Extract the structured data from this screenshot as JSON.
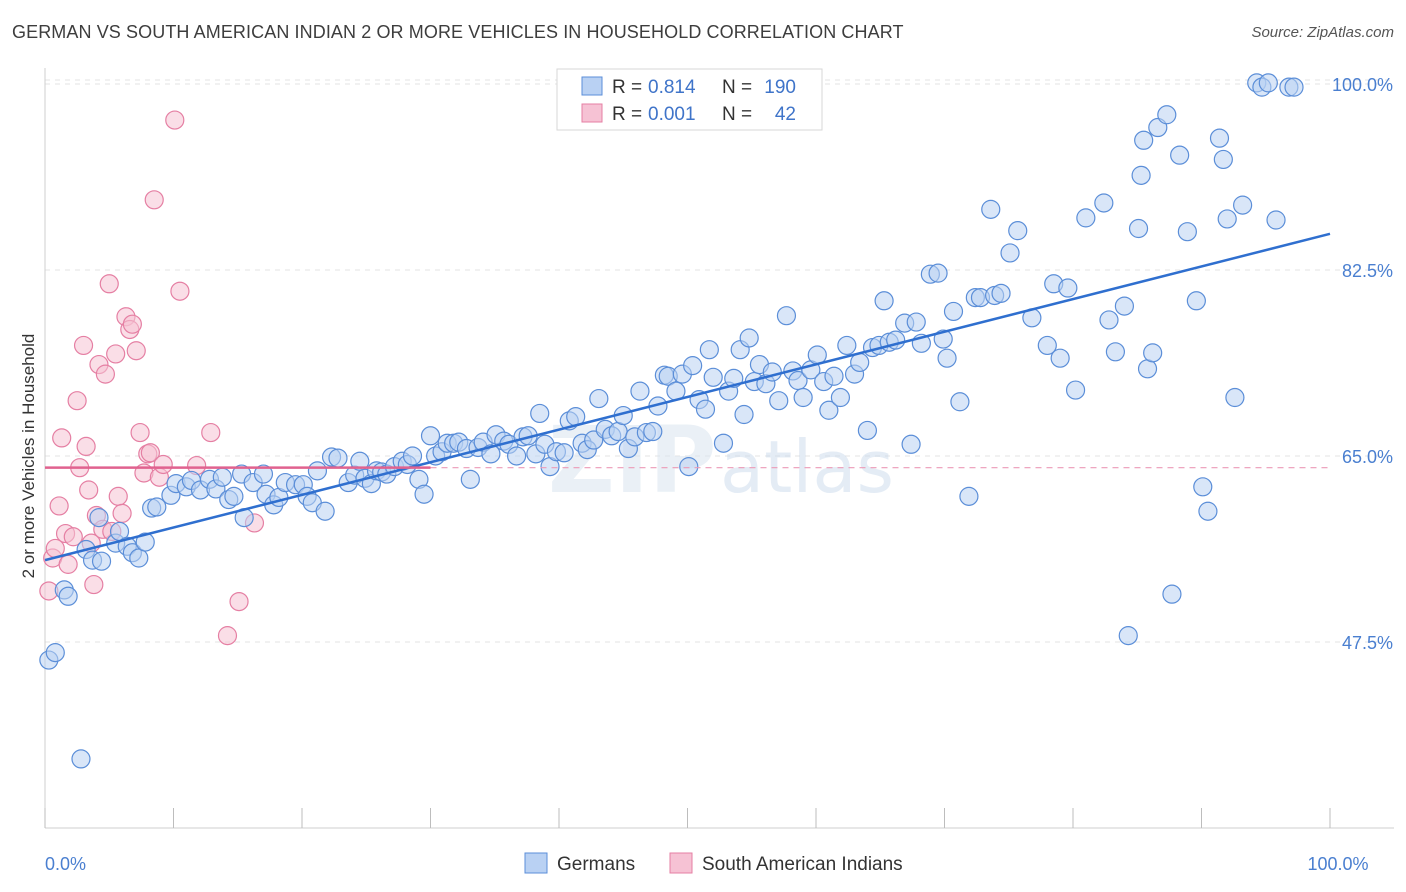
{
  "title": "GERMAN VS SOUTH AMERICAN INDIAN 2 OR MORE VEHICLES IN HOUSEHOLD CORRELATION CHART",
  "source": "Source: ZipAtlas.com",
  "watermark": {
    "zip": "ZIP",
    "atlas": "atlas"
  },
  "chart_data": {
    "type": "scatter",
    "ylabel": "2 or more Vehicles in Household",
    "xlim": [
      0,
      100
    ],
    "ylim": [
      30,
      101.5
    ],
    "x_tick_labels": [
      {
        "value": 0,
        "label": "0.0%"
      },
      {
        "value": 100,
        "label": "100.0%"
      }
    ],
    "y_tick_labels": [
      {
        "value": 47.5,
        "label": "47.5%"
      },
      {
        "value": 65.0,
        "label": "65.0%"
      },
      {
        "value": 82.5,
        "label": "82.5%"
      },
      {
        "value": 100.0,
        "label": "100.0%"
      }
    ],
    "grid": true,
    "legend_position": "top-center",
    "stats_box": [
      {
        "r_label": "R =",
        "r_value": "0.814",
        "n_label": "N =",
        "n_value": "190"
      },
      {
        "r_label": "R =",
        "r_value": "0.001",
        "n_label": "N =",
        "n_value": "42"
      }
    ],
    "series": [
      {
        "name": "Germans",
        "color": "#5b8ed8",
        "fill": "#b9d1f3",
        "trend": {
          "x": [
            0,
            100
          ],
          "y": [
            55.2,
            85.9
          ]
        },
        "points": [
          [
            0.3,
            45.8
          ],
          [
            0.8,
            46.5
          ],
          [
            1.5,
            52.4
          ],
          [
            1.8,
            51.8
          ],
          [
            2.8,
            36.5
          ],
          [
            3.2,
            56.2
          ],
          [
            3.7,
            55.2
          ],
          [
            4.2,
            59.2
          ],
          [
            4.4,
            55.1
          ],
          [
            5.5,
            56.8
          ],
          [
            5.8,
            57.9
          ],
          [
            6.4,
            56.5
          ],
          [
            6.8,
            55.9
          ],
          [
            7.3,
            55.4
          ],
          [
            7.8,
            56.9
          ],
          [
            8.3,
            60.1
          ],
          [
            8.7,
            60.2
          ],
          [
            9.8,
            61.3
          ],
          [
            10.2,
            62.4
          ],
          [
            11.0,
            62.1
          ],
          [
            11.4,
            62.7
          ],
          [
            12.1,
            61.8
          ],
          [
            12.8,
            62.8
          ],
          [
            13.3,
            61.9
          ],
          [
            13.8,
            63.0
          ],
          [
            14.3,
            60.9
          ],
          [
            14.7,
            61.2
          ],
          [
            15.3,
            63.3
          ],
          [
            15.5,
            59.2
          ],
          [
            16.2,
            62.5
          ],
          [
            17.0,
            63.3
          ],
          [
            17.2,
            61.4
          ],
          [
            17.8,
            60.4
          ],
          [
            18.2,
            61.1
          ],
          [
            18.7,
            62.5
          ],
          [
            19.5,
            62.3
          ],
          [
            20.1,
            62.3
          ],
          [
            20.4,
            61.2
          ],
          [
            20.8,
            60.6
          ],
          [
            21.2,
            63.6
          ],
          [
            21.8,
            59.8
          ],
          [
            22.3,
            64.9
          ],
          [
            22.8,
            64.8
          ],
          [
            23.6,
            62.5
          ],
          [
            24.1,
            63.2
          ],
          [
            24.5,
            64.5
          ],
          [
            24.9,
            62.9
          ],
          [
            25.4,
            62.4
          ],
          [
            25.8,
            63.6
          ],
          [
            26.2,
            63.5
          ],
          [
            26.6,
            63.3
          ],
          [
            27.2,
            64.0
          ],
          [
            27.8,
            64.5
          ],
          [
            28.2,
            64.2
          ],
          [
            28.6,
            65.0
          ],
          [
            29.1,
            62.8
          ],
          [
            29.5,
            61.4
          ],
          [
            30.0,
            66.9
          ],
          [
            30.4,
            65.0
          ],
          [
            30.9,
            65.4
          ],
          [
            31.3,
            66.2
          ],
          [
            31.8,
            66.2
          ],
          [
            32.2,
            66.3
          ],
          [
            32.8,
            65.7
          ],
          [
            33.1,
            62.8
          ],
          [
            33.7,
            65.8
          ],
          [
            34.1,
            66.3
          ],
          [
            34.7,
            65.2
          ],
          [
            35.1,
            67.0
          ],
          [
            35.7,
            66.4
          ],
          [
            36.1,
            66.1
          ],
          [
            36.7,
            65.0
          ],
          [
            37.2,
            66.8
          ],
          [
            37.6,
            66.9
          ],
          [
            38.2,
            65.2
          ],
          [
            38.5,
            69.0
          ],
          [
            38.9,
            66.1
          ],
          [
            39.3,
            64.0
          ],
          [
            39.8,
            65.4
          ],
          [
            40.4,
            65.3
          ],
          [
            40.8,
            68.3
          ],
          [
            41.3,
            68.7
          ],
          [
            41.8,
            66.2
          ],
          [
            42.2,
            65.6
          ],
          [
            42.7,
            66.5
          ],
          [
            43.1,
            70.4
          ],
          [
            43.6,
            67.5
          ],
          [
            44.1,
            66.9
          ],
          [
            44.6,
            67.3
          ],
          [
            45.0,
            68.8
          ],
          [
            45.4,
            65.7
          ],
          [
            45.9,
            66.8
          ],
          [
            46.3,
            71.1
          ],
          [
            46.8,
            67.2
          ],
          [
            47.3,
            67.3
          ],
          [
            47.7,
            69.7
          ],
          [
            48.2,
            72.6
          ],
          [
            48.5,
            72.5
          ],
          [
            49.1,
            71.1
          ],
          [
            49.6,
            72.7
          ],
          [
            50.1,
            64.0
          ],
          [
            50.4,
            73.5
          ],
          [
            50.9,
            70.3
          ],
          [
            51.4,
            69.4
          ],
          [
            51.7,
            75.0
          ],
          [
            52.0,
            72.4
          ],
          [
            52.8,
            66.2
          ],
          [
            53.2,
            71.1
          ],
          [
            53.6,
            72.3
          ],
          [
            54.1,
            75.0
          ],
          [
            54.4,
            68.9
          ],
          [
            54.8,
            76.1
          ],
          [
            55.2,
            72.0
          ],
          [
            55.6,
            73.6
          ],
          [
            56.1,
            71.8
          ],
          [
            56.6,
            72.9
          ],
          [
            57.1,
            70.2
          ],
          [
            57.7,
            78.2
          ],
          [
            58.2,
            73.0
          ],
          [
            58.6,
            72.1
          ],
          [
            59.0,
            70.5
          ],
          [
            59.6,
            73.1
          ],
          [
            60.1,
            74.5
          ],
          [
            60.6,
            72.0
          ],
          [
            61.0,
            69.3
          ],
          [
            61.4,
            72.5
          ],
          [
            61.9,
            70.5
          ],
          [
            62.4,
            75.4
          ],
          [
            63.0,
            72.7
          ],
          [
            63.4,
            73.8
          ],
          [
            64.0,
            67.4
          ],
          [
            64.4,
            75.2
          ],
          [
            64.9,
            75.4
          ],
          [
            65.3,
            79.6
          ],
          [
            65.7,
            75.7
          ],
          [
            66.2,
            75.9
          ],
          [
            66.9,
            77.5
          ],
          [
            67.4,
            66.1
          ],
          [
            67.8,
            77.6
          ],
          [
            68.2,
            75.6
          ],
          [
            68.9,
            82.1
          ],
          [
            69.5,
            82.2
          ],
          [
            69.9,
            76.0
          ],
          [
            70.2,
            74.2
          ],
          [
            70.7,
            78.6
          ],
          [
            71.2,
            70.1
          ],
          [
            71.9,
            61.2
          ],
          [
            72.4,
            79.9
          ],
          [
            72.8,
            79.9
          ],
          [
            73.6,
            88.2
          ],
          [
            73.9,
            80.1
          ],
          [
            74.4,
            80.3
          ],
          [
            75.1,
            84.1
          ],
          [
            75.7,
            86.2
          ],
          [
            76.8,
            78.0
          ],
          [
            78.0,
            75.4
          ],
          [
            78.5,
            81.2
          ],
          [
            79.0,
            74.2
          ],
          [
            79.6,
            80.8
          ],
          [
            80.2,
            71.2
          ],
          [
            81.0,
            87.4
          ],
          [
            82.4,
            88.8
          ],
          [
            82.8,
            77.8
          ],
          [
            83.3,
            74.8
          ],
          [
            84.0,
            79.1
          ],
          [
            84.3,
            48.1
          ],
          [
            85.1,
            86.4
          ],
          [
            85.3,
            91.4
          ],
          [
            85.5,
            94.7
          ],
          [
            85.8,
            73.2
          ],
          [
            86.2,
            74.7
          ],
          [
            86.6,
            95.9
          ],
          [
            87.3,
            97.1
          ],
          [
            87.7,
            52.0
          ],
          [
            88.3,
            93.3
          ],
          [
            88.9,
            86.1
          ],
          [
            89.6,
            79.6
          ],
          [
            90.1,
            62.1
          ],
          [
            90.5,
            59.8
          ],
          [
            91.4,
            94.9
          ],
          [
            91.7,
            92.9
          ],
          [
            92.0,
            87.3
          ],
          [
            92.6,
            70.5
          ],
          [
            93.2,
            88.6
          ],
          [
            94.3,
            100.1
          ],
          [
            94.7,
            99.7
          ],
          [
            95.2,
            100.1
          ],
          [
            95.8,
            87.2
          ],
          [
            96.8,
            99.7
          ],
          [
            97.2,
            99.7
          ]
        ]
      },
      {
        "name": "South American Indians",
        "color": "#e57fa3",
        "fill": "#f6c2d4",
        "trend": {
          "x": [
            0,
            30
          ],
          "y": [
            63.9,
            63.9
          ]
        },
        "points": [
          [
            0.3,
            52.3
          ],
          [
            0.6,
            55.4
          ],
          [
            0.8,
            56.3
          ],
          [
            1.1,
            60.3
          ],
          [
            1.3,
            66.7
          ],
          [
            1.6,
            57.7
          ],
          [
            1.8,
            54.8
          ],
          [
            2.2,
            57.4
          ],
          [
            2.5,
            70.2
          ],
          [
            2.7,
            63.9
          ],
          [
            3.0,
            75.4
          ],
          [
            3.2,
            65.9
          ],
          [
            3.4,
            61.8
          ],
          [
            3.6,
            56.8
          ],
          [
            3.8,
            52.9
          ],
          [
            4.0,
            59.4
          ],
          [
            4.2,
            73.6
          ],
          [
            4.5,
            58.1
          ],
          [
            4.7,
            72.7
          ],
          [
            5.0,
            81.2
          ],
          [
            5.2,
            57.9
          ],
          [
            5.5,
            74.6
          ],
          [
            5.7,
            61.2
          ],
          [
            6.0,
            59.6
          ],
          [
            6.3,
            78.1
          ],
          [
            6.6,
            76.9
          ],
          [
            6.8,
            77.4
          ],
          [
            7.1,
            74.9
          ],
          [
            7.4,
            67.2
          ],
          [
            7.7,
            63.4
          ],
          [
            8.0,
            65.2
          ],
          [
            8.2,
            65.3
          ],
          [
            8.5,
            89.1
          ],
          [
            8.9,
            63.0
          ],
          [
            9.2,
            64.2
          ],
          [
            10.1,
            96.6
          ],
          [
            10.5,
            80.5
          ],
          [
            11.8,
            64.1
          ],
          [
            12.9,
            67.2
          ],
          [
            14.2,
            48.1
          ],
          [
            16.3,
            58.7
          ],
          [
            15.1,
            51.3
          ]
        ]
      }
    ]
  }
}
